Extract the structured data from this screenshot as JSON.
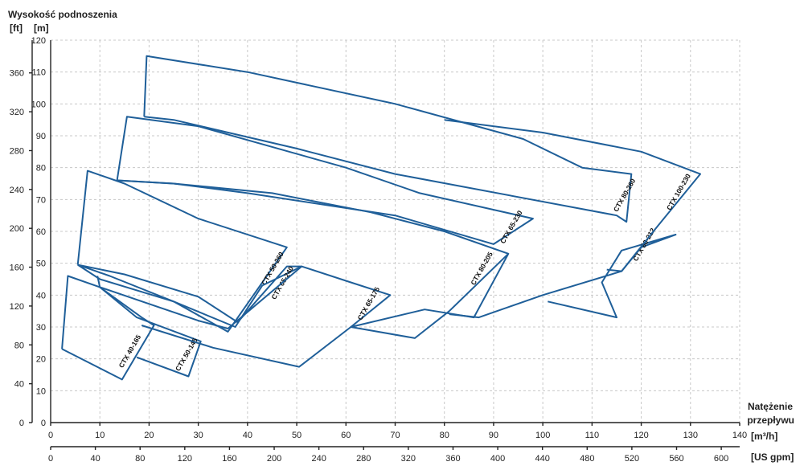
{
  "chart_data": {
    "type": "line",
    "title": "",
    "ylabel": "Wysokość podnoszenia",
    "y_unit_primary": "[m]",
    "y_unit_secondary": "[ft]",
    "xlabel_line1": "Natężenie",
    "xlabel_line2": "przepływu",
    "x_unit_primary": "[m³/h]",
    "x_unit_secondary": "[US gpm]",
    "xlim": [
      0,
      140
    ],
    "ylim": [
      0,
      120
    ],
    "x_ticks_m3h": [
      "0",
      "10",
      "20",
      "30",
      "40",
      "50",
      "60",
      "70",
      "80",
      "90",
      "100",
      "110",
      "120",
      "130",
      "140"
    ],
    "x_ticks_gpm": [
      "0",
      "40",
      "80",
      "120",
      "160",
      "200",
      "240",
      "280",
      "320",
      "360",
      "400",
      "440",
      "480",
      "520",
      "560",
      "600"
    ],
    "y_ticks_m": [
      "0",
      "10",
      "20",
      "30",
      "40",
      "50",
      "60",
      "70",
      "80",
      "90",
      "100",
      "110",
      "120"
    ],
    "y_ticks_ft": [
      "0",
      "40",
      "80",
      "120",
      "160",
      "200",
      "240",
      "280",
      "320",
      "360"
    ],
    "grid": true,
    "line_color": "#1f5f99",
    "series": [
      {
        "name": "CTX 40-165",
        "points": [
          [
            2.3,
            23.1
          ],
          [
            3.5,
            46
          ],
          [
            10,
            42.5
          ],
          [
            18.5,
            33
          ],
          [
            21,
            30.5
          ],
          [
            14.5,
            13.5
          ],
          [
            2.3,
            23.1
          ]
        ],
        "label_at": [
          16.5,
          22
        ]
      },
      {
        "name": "CTX 50-145",
        "points": [
          [
            10,
            42.5
          ],
          [
            17.5,
            33
          ],
          [
            30.5,
            25.5
          ],
          [
            28,
            14.5
          ],
          [
            17.5,
            20.5
          ]
        ],
        "label_at": [
          28,
          21
        ]
      },
      {
        "name": "CTX 50-260",
        "points": [
          [
            5.5,
            49.5
          ],
          [
            7.5,
            79
          ],
          [
            15,
            75
          ],
          [
            30,
            64
          ],
          [
            48,
            55
          ],
          [
            36,
            28.5
          ],
          [
            25,
            38
          ],
          [
            12,
            46
          ],
          [
            5.5,
            49.5
          ]
        ],
        "label_at": [
          45.5,
          48
        ]
      },
      {
        "name": "CTX 65-240",
        "points": [
          [
            5.5,
            49.5
          ],
          [
            15,
            46.5
          ],
          [
            30,
            39.5
          ],
          [
            38,
            31.5
          ],
          [
            48,
            49
          ],
          [
            51,
            49
          ],
          [
            43,
            43
          ],
          [
            37.5,
            30
          ],
          [
            25,
            38
          ],
          [
            10,
            45
          ],
          [
            5.5,
            49.5
          ]
        ],
        "label_at": [
          47.5,
          43.5
        ]
      },
      {
        "name": "CTX 65-175",
        "points": [
          [
            9.5,
            46
          ],
          [
            10,
            42.5
          ],
          [
            30,
            32
          ],
          [
            36,
            29.5
          ],
          [
            51,
            49
          ],
          [
            61,
            44
          ],
          [
            69,
            40
          ],
          [
            61,
            30
          ],
          [
            50.5,
            17.5
          ],
          [
            33,
            23.5
          ],
          [
            18.5,
            30.5
          ]
        ],
        "label_at": [
          65,
          37
        ]
      },
      {
        "name": "CTX 65-230",
        "points": [
          [
            13.5,
            76
          ],
          [
            15.5,
            96
          ],
          [
            30,
            93
          ],
          [
            60,
            80
          ],
          [
            75,
            72
          ],
          [
            98,
            64
          ],
          [
            90,
            56
          ],
          [
            70,
            65
          ],
          [
            40,
            72
          ],
          [
            25,
            75
          ],
          [
            13.5,
            76
          ]
        ],
        "label_at": [
          94,
          61
        ]
      },
      {
        "name": "CTX 80-205",
        "points": [
          [
            13.5,
            76
          ],
          [
            25,
            75
          ],
          [
            45,
            72
          ],
          [
            65,
            66
          ],
          [
            80,
            60
          ],
          [
            93,
            53
          ],
          [
            81,
            35
          ],
          [
            74,
            26.5
          ],
          [
            61,
            30
          ],
          [
            76,
            35.5
          ],
          [
            86,
            33
          ],
          [
            93,
            53
          ]
        ],
        "label_at": [
          88,
          48
        ]
      },
      {
        "name": "CTX 80-260",
        "points": [
          [
            19,
            96
          ],
          [
            19.5,
            115
          ],
          [
            40,
            110
          ],
          [
            70,
            100
          ],
          [
            96,
            89
          ],
          [
            108,
            80
          ],
          [
            118,
            78
          ],
          [
            117,
            63
          ],
          [
            115,
            65
          ],
          [
            70,
            78
          ],
          [
            50,
            86
          ],
          [
            25,
            95
          ],
          [
            19,
            96
          ]
        ],
        "label_at": [
          117,
          71
        ]
      },
      {
        "name": "CTX 80-212",
        "points": [
          [
            81,
            34
          ],
          [
            87,
            33
          ],
          [
            100,
            40
          ],
          [
            116,
            47.5
          ],
          [
            120,
            55
          ],
          [
            127,
            59
          ],
          [
            116,
            54
          ],
          [
            112,
            44
          ],
          [
            115,
            33
          ],
          [
            101,
            38
          ]
        ],
        "label_at": [
          121,
          55.5
        ]
      },
      {
        "name": "CTX 100-230",
        "points": [
          [
            80,
            95
          ],
          [
            100,
            91
          ],
          [
            120,
            85
          ],
          [
            132,
            78
          ],
          [
            123,
            61
          ],
          [
            116,
            47.5
          ],
          [
            113,
            48
          ]
        ],
        "label_at": [
          128,
          72
        ]
      }
    ]
  }
}
